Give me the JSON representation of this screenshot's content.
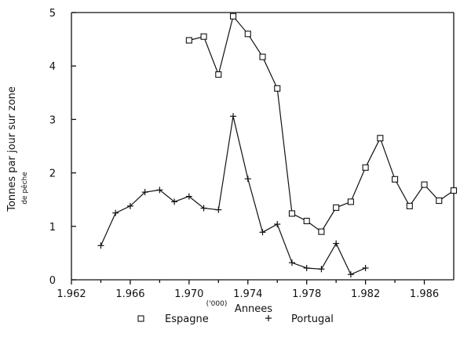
{
  "chart_data": {
    "type": "line",
    "title": "",
    "xlabel": "Annees",
    "xlabel_unit": "('000)",
    "ylabel": "Tonnes par jour sur zone",
    "ylabel_sub": "de pêche",
    "xlim": [
      1962,
      1988
    ],
    "ylim": [
      0,
      5
    ],
    "x_ticks": [
      1962,
      1966,
      1970,
      1974,
      1978,
      1982,
      1986
    ],
    "x_minor_ticks": [
      1964,
      1968,
      1972,
      1976,
      1980,
      1984
    ],
    "x_tick_labels": [
      "1.962",
      "1.966",
      "1.970",
      "1.974",
      "1.978",
      "1.982",
      "1.986"
    ],
    "y_ticks": [
      0,
      1,
      2,
      3,
      4,
      5
    ],
    "y_tick_labels": [
      "0",
      "1",
      "2",
      "3",
      "4",
      "5"
    ],
    "grid": false,
    "legend_position": "bottom",
    "series": [
      {
        "name": "Espagne",
        "marker": "square",
        "x": [
          1970,
          1971,
          1972,
          1973,
          1974,
          1975,
          1976,
          1977,
          1978,
          1979,
          1980,
          1981,
          1982,
          1983,
          1984,
          1985,
          1986,
          1987,
          1988
        ],
        "y": [
          4.48,
          4.55,
          3.84,
          4.93,
          4.6,
          4.17,
          3.58,
          1.24,
          1.1,
          0.9,
          1.35,
          1.46,
          2.1,
          2.65,
          1.88,
          1.38,
          1.78,
          1.48,
          1.67
        ]
      },
      {
        "name": "Portugal",
        "marker": "plus",
        "x": [
          1964,
          1965,
          1966,
          1967,
          1968,
          1969,
          1970,
          1971,
          1972,
          1973,
          1974,
          1975,
          1976,
          1977,
          1978,
          1979,
          1980,
          1981,
          1982
        ],
        "y": [
          0.64,
          1.25,
          1.38,
          1.64,
          1.68,
          1.46,
          1.56,
          1.34,
          1.31,
          3.06,
          1.89,
          0.89,
          1.04,
          0.32,
          0.22,
          0.2,
          0.68,
          0.1,
          0.22
        ]
      }
    ]
  }
}
